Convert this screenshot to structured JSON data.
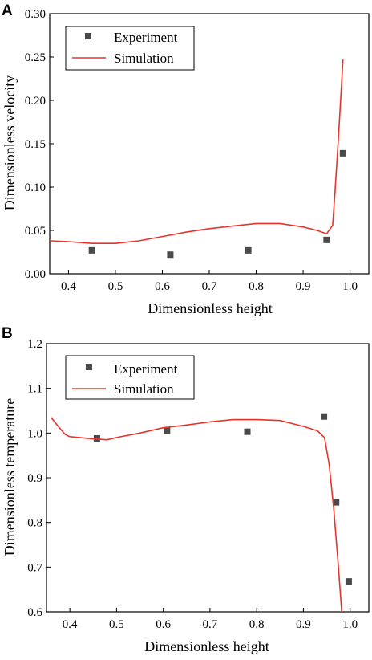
{
  "chart_data": [
    {
      "panel_label": "A",
      "type": "scatter+line",
      "xlabel": "Dimensionless height",
      "ylabel": "Dimensionless velocity",
      "xlim": [
        0.36,
        1.04
      ],
      "ylim": [
        0.0,
        0.3
      ],
      "xticks": [
        "0.4",
        "0.5",
        "0.6",
        "0.7",
        "0.8",
        "0.9",
        "1.0"
      ],
      "xtick_values": [
        0.4,
        0.5,
        0.6,
        0.7,
        0.8,
        0.9,
        1.0
      ],
      "yticks": [
        "0.00",
        "0.05",
        "0.10",
        "0.15",
        "0.20",
        "0.25",
        "0.30"
      ],
      "ytick_values": [
        0.0,
        0.05,
        0.1,
        0.15,
        0.2,
        0.25,
        0.3
      ],
      "grid": false,
      "legend_position": "top-left",
      "series": [
        {
          "name": "Experiment",
          "kind": "scatter",
          "color": "#4a4a4a",
          "x": [
            0.45,
            0.617,
            0.783,
            0.95,
            0.985
          ],
          "y": [
            0.027,
            0.022,
            0.027,
            0.039,
            0.139
          ]
        },
        {
          "name": "Simulation",
          "kind": "line",
          "color": "#e8332a",
          "x": [
            0.36,
            0.4,
            0.45,
            0.5,
            0.55,
            0.6,
            0.65,
            0.7,
            0.75,
            0.8,
            0.85,
            0.9,
            0.93,
            0.95,
            0.963,
            0.968,
            0.975,
            0.985
          ],
          "y": [
            0.038,
            0.037,
            0.035,
            0.035,
            0.038,
            0.043,
            0.048,
            0.052,
            0.055,
            0.058,
            0.058,
            0.054,
            0.05,
            0.046,
            0.056,
            0.095,
            0.155,
            0.247
          ]
        }
      ]
    },
    {
      "panel_label": "B",
      "type": "scatter+line",
      "xlabel": "Dimensionless height",
      "ylabel": "Dimensionless temperature",
      "xlim": [
        0.35,
        1.04
      ],
      "ylim": [
        0.6,
        1.2
      ],
      "xticks": [
        "0.4",
        "0.5",
        "0.6",
        "0.7",
        "0.8",
        "0.9",
        "1.0"
      ],
      "xtick_values": [
        0.4,
        0.5,
        0.6,
        0.7,
        0.8,
        0.9,
        1.0
      ],
      "yticks": [
        "0.6",
        "0.7",
        "0.8",
        "0.9",
        "1.0",
        "1.1",
        "1.2"
      ],
      "ytick_values": [
        0.6,
        0.7,
        0.8,
        0.9,
        1.0,
        1.1,
        1.2
      ],
      "grid": false,
      "legend_position": "top-left",
      "series": [
        {
          "name": "Experiment",
          "kind": "scatter",
          "color": "#4a4a4a",
          "x": [
            0.458,
            0.608,
            0.78,
            0.944,
            0.97,
            0.997
          ],
          "y": [
            0.988,
            1.005,
            1.003,
            1.037,
            0.845,
            0.668
          ]
        },
        {
          "name": "Simulation",
          "kind": "line",
          "color": "#e8332a",
          "x": [
            0.36,
            0.375,
            0.39,
            0.4,
            0.45,
            0.48,
            0.5,
            0.55,
            0.6,
            0.65,
            0.7,
            0.75,
            0.8,
            0.85,
            0.9,
            0.93,
            0.945,
            0.955,
            0.965,
            0.975,
            0.982
          ],
          "y": [
            1.035,
            1.015,
            0.997,
            0.992,
            0.987,
            0.985,
            0.99,
            1.0,
            1.012,
            1.018,
            1.025,
            1.03,
            1.03,
            1.028,
            1.015,
            1.005,
            0.99,
            0.93,
            0.83,
            0.7,
            0.6
          ]
        }
      ]
    }
  ]
}
